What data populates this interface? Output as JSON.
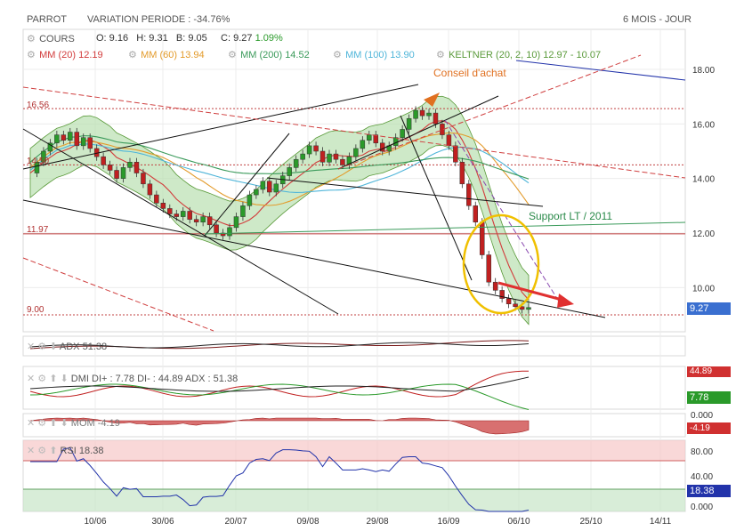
{
  "header": {
    "symbol": "PARROT",
    "variation": "VARIATION PERIODE : -34.76%",
    "period": "6 MOIS - JOUR"
  },
  "legend": {
    "cours": {
      "label": "COURS",
      "o": "O: 9.16",
      "h": "H: 9.31",
      "b": "B: 9.05",
      "c": "C: 9.27",
      "chg": "1.09%"
    },
    "mm20": {
      "label": "MM (20)",
      "value": "12.19",
      "color": "#d23c3c"
    },
    "mm60": {
      "label": "MM (60)",
      "value": "13.94",
      "color": "#e39b2b"
    },
    "mm200": {
      "label": "MM (200)",
      "value": "14.52",
      "color": "#3a9a5a"
    },
    "mm100": {
      "label": "MM (100)",
      "value": "13.90",
      "color": "#4fb5d9"
    },
    "keltner": {
      "label": "KELTNER (20, 2, 10)",
      "value": "12.97 - 10.07",
      "color": "#5a9a3a"
    }
  },
  "annotations": {
    "conseil": "Conseil d'achat",
    "support": "Support LT / 2011"
  },
  "price_levels": [
    {
      "label": "16.56",
      "value": 16.56
    },
    {
      "label": "14.50",
      "value": 14.5
    },
    {
      "label": "11.97",
      "value": 11.97
    },
    {
      "label": "9.00",
      "value": 9.0
    }
  ],
  "last_price": "9.27",
  "indicators": {
    "adx": {
      "label": "ADX",
      "value": "51.38"
    },
    "dmi": {
      "label": "DMI",
      "text": "DI+ : 7.78 DI- : 44.89 ADX : 51.38",
      "di_minus": "44.89",
      "di_plus": "7.78"
    },
    "mom": {
      "label": "MOM",
      "value": "-4.19",
      "zero": "0.000",
      "right_value": "-4.19"
    },
    "rsi": {
      "label": "RSI",
      "value": "18.38",
      "right_value": "18.38"
    }
  },
  "rsi_ticks": [
    "80.00",
    "40.00",
    "0.000"
  ],
  "chart_data": {
    "type": "candlestick",
    "x_ticks": [
      "10/06",
      "30/06",
      "20/07",
      "09/08",
      "29/08",
      "16/09",
      "06/10",
      "25/10",
      "14/11"
    ],
    "y_ticks": [
      10,
      12,
      14,
      16,
      18
    ],
    "y_tick_labels": [
      "10.00",
      "12.00",
      "14.00",
      "16.00",
      "18.00"
    ],
    "ylim": [
      8.6,
      19.2
    ],
    "close_path": [
      14.2,
      14.6,
      15.0,
      15.3,
      15.6,
      15.4,
      15.7,
      15.2,
      15.5,
      15.1,
      14.8,
      14.5,
      14.3,
      14.0,
      14.4,
      14.6,
      14.2,
      13.8,
      13.4,
      13.1,
      12.9,
      12.7,
      12.6,
      12.8,
      12.5,
      12.4,
      12.6,
      12.3,
      12.0,
      11.9,
      12.2,
      12.6,
      13.0,
      13.4,
      13.6,
      13.9,
      13.5,
      13.8,
      14.1,
      14.4,
      14.7,
      14.9,
      15.2,
      15.0,
      14.6,
      14.9,
      14.7,
      14.5,
      14.8,
      15.1,
      15.4,
      15.6,
      15.3,
      15.0,
      15.2,
      15.5,
      15.8,
      16.2,
      16.5,
      16.3,
      16.4,
      16.0,
      15.6,
      15.2,
      14.6,
      13.8,
      13.0,
      12.4,
      11.2,
      10.2,
      9.9,
      9.6,
      9.4,
      9.3,
      9.2,
      9.27
    ]
  }
}
